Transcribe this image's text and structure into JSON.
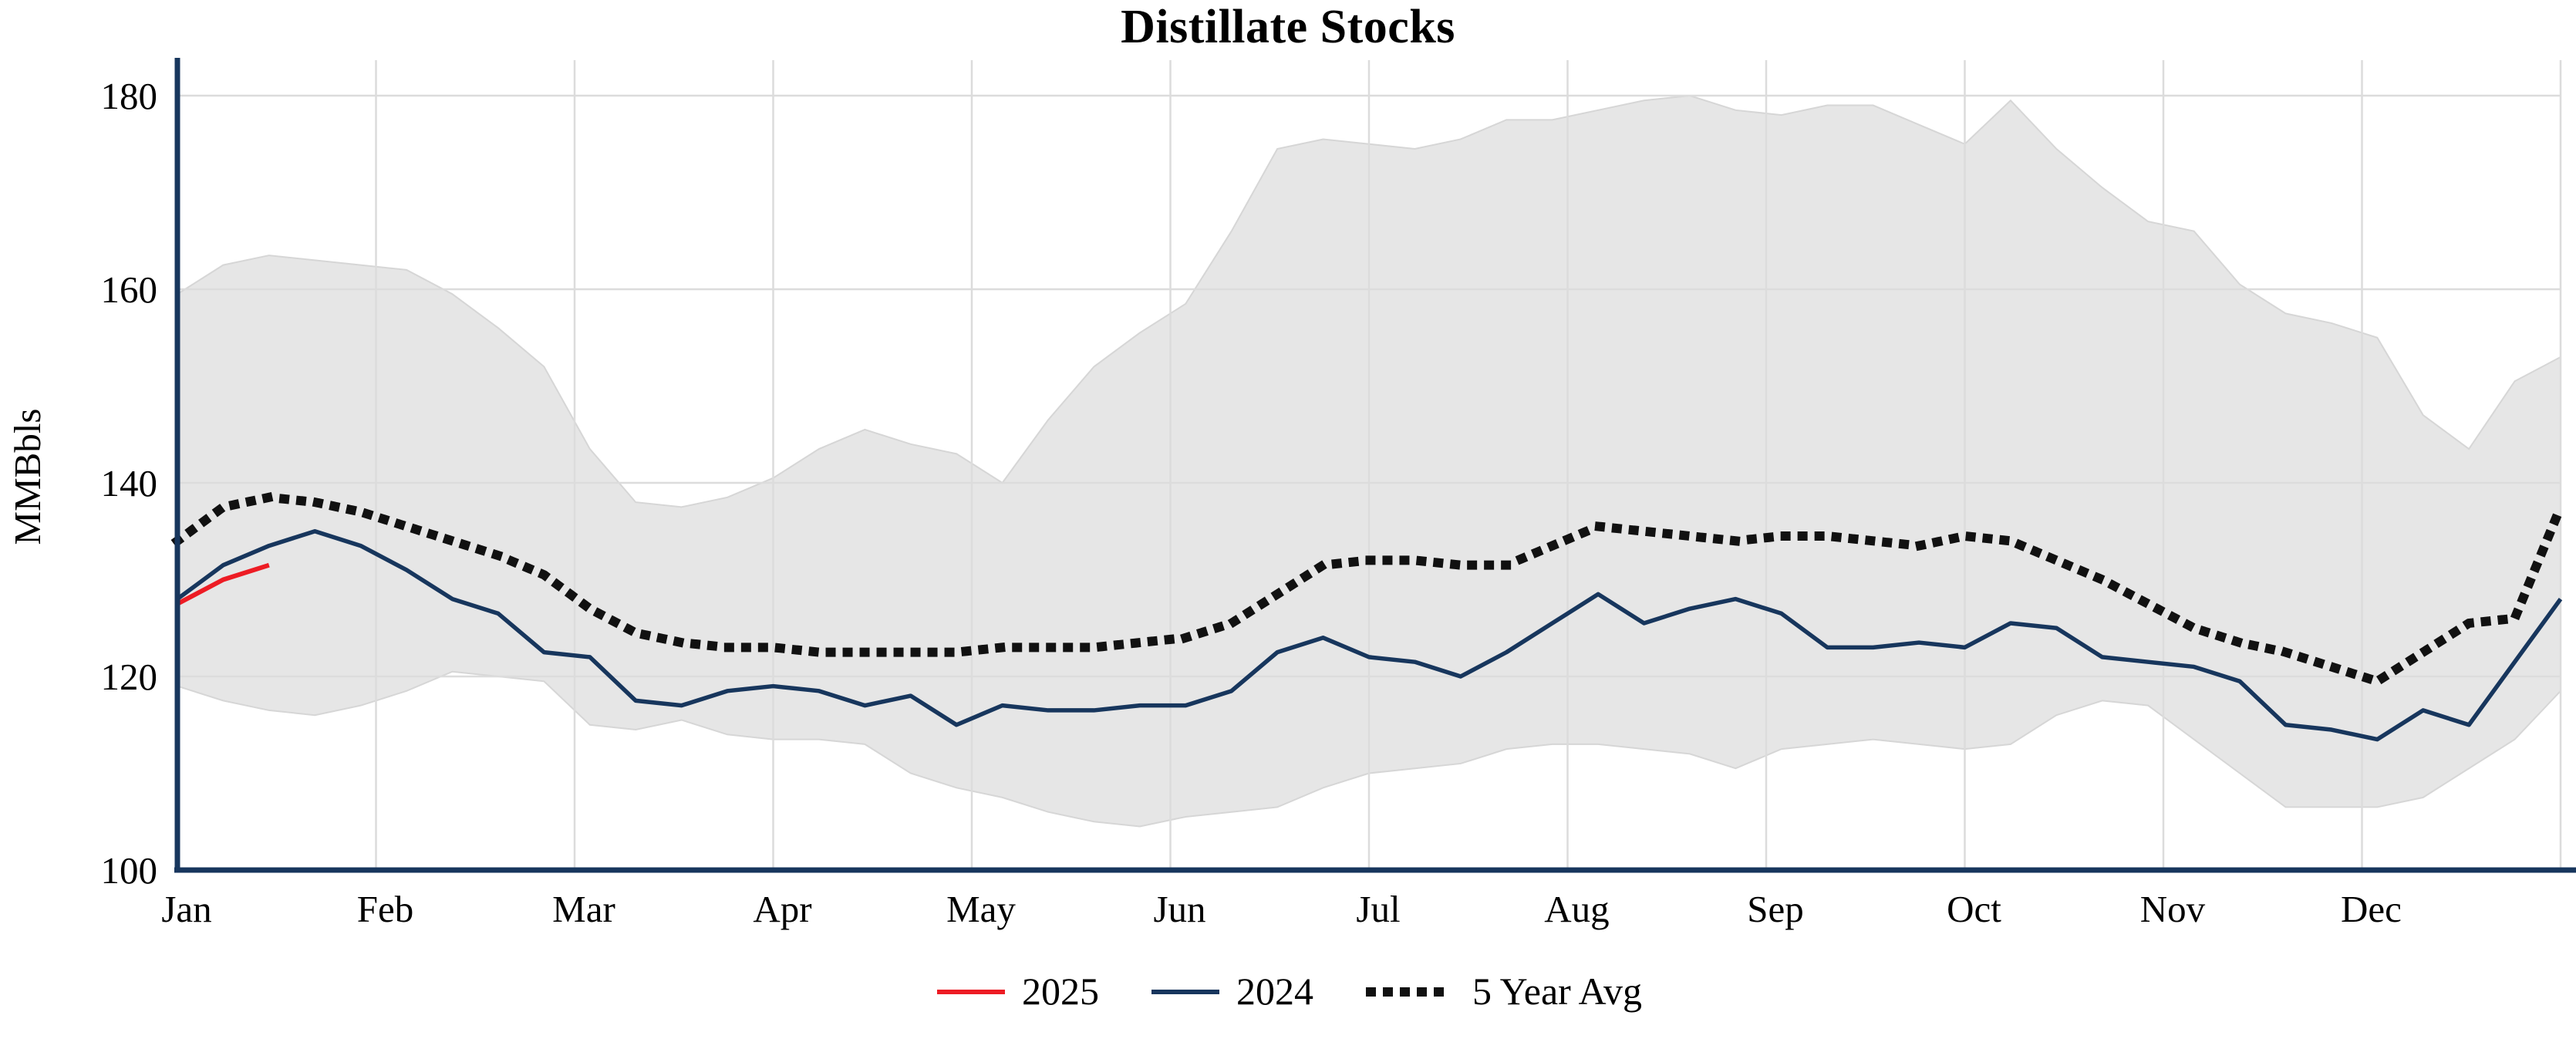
{
  "title": "Distillate Stocks",
  "legend": {
    "s2025": "2025",
    "s2024": "2024",
    "savg": "5 Year Avg"
  },
  "chart_data": {
    "type": "line",
    "title": "Distillate Stocks",
    "xlabel": "",
    "ylabel": "MMBbls",
    "ylim": [
      100,
      183
    ],
    "yticks": [
      100,
      120,
      140,
      160,
      180
    ],
    "months": [
      "Jan",
      "Feb",
      "Mar",
      "Apr",
      "May",
      "Jun",
      "Jul",
      "Aug",
      "Sep",
      "Oct",
      "Nov",
      "Dec"
    ],
    "x_unit": "week",
    "n_points": 53,
    "grid": true,
    "legend_position": "bottom",
    "series": [
      {
        "name": "5 Year Range",
        "type": "band",
        "fill": "#e6e6e6",
        "edge": "#d6d6d6",
        "upper": [
          159.5,
          162.5,
          163.5,
          163,
          162.5,
          162,
          159.5,
          156,
          152,
          143.5,
          138,
          137.5,
          138.5,
          140.5,
          143.5,
          145.5,
          144,
          143,
          140,
          146.5,
          152,
          155.5,
          158.5,
          166,
          174.5,
          175.5,
          175,
          174.5,
          175.5,
          177.5,
          177.5,
          178.5,
          179.5,
          180,
          178.5,
          178,
          179,
          179,
          177,
          175,
          179.5,
          174.5,
          170.5,
          167,
          166,
          160.5,
          157.5,
          156.5,
          155,
          147,
          143.5,
          150.5,
          153
        ],
        "lower": [
          119,
          117.5,
          116.5,
          116,
          117,
          118.5,
          120.5,
          120,
          119.5,
          115,
          114.5,
          115.5,
          114,
          113.5,
          113.5,
          113,
          110,
          108.5,
          107.5,
          106,
          105,
          104.5,
          105.5,
          106,
          106.5,
          108.5,
          110,
          110.5,
          111,
          112.5,
          113,
          113,
          112.5,
          112,
          110.5,
          112.5,
          113,
          113.5,
          113,
          112.5,
          113,
          116,
          117.5,
          117,
          113.5,
          110,
          106.5,
          106.5,
          106.5,
          107.5,
          110.5,
          113.5,
          118.5
        ]
      },
      {
        "name": "5 Year Avg",
        "color": "#111111",
        "width": 12,
        "dash": "1 21",
        "start_week": 0,
        "values": [
          134,
          137.5,
          138.5,
          138,
          137,
          135.5,
          134,
          132.5,
          130.5,
          127,
          124.5,
          123.5,
          123,
          123,
          122.5,
          122.5,
          122.5,
          122.5,
          123,
          123,
          123,
          123.5,
          124,
          125.5,
          128.5,
          131.5,
          132,
          132,
          131.5,
          131.5,
          133.5,
          135.5,
          135,
          134.5,
          134,
          134.5,
          134.5,
          134,
          133.5,
          134.5,
          134,
          132,
          130,
          127.5,
          125,
          123.5,
          122.5,
          121,
          119.5,
          122.5,
          125.5,
          126,
          137.5
        ]
      },
      {
        "name": "2024",
        "color": "#17365d",
        "width": 5.5,
        "start_week": 0,
        "values": [
          128,
          131.5,
          133.5,
          135,
          133.5,
          131,
          128,
          126.5,
          122.5,
          122,
          117.5,
          117,
          118.5,
          119,
          118.5,
          117,
          118,
          115,
          117,
          116.5,
          116.5,
          117,
          117,
          118.5,
          122.5,
          124,
          122,
          121.5,
          120,
          122.5,
          125.5,
          128.5,
          125.5,
          127,
          128,
          126.5,
          123,
          123,
          123.5,
          123,
          125.5,
          125,
          122,
          121.5,
          121,
          119.5,
          115,
          114.5,
          113.5,
          116.5,
          115,
          121.5,
          128
        ],
        "year": "2024"
      },
      {
        "name": "2025",
        "color": "#ed1c24",
        "width": 6,
        "start_week": 0,
        "values": [
          127.5,
          130,
          131.5
        ],
        "year": "2025"
      }
    ]
  }
}
